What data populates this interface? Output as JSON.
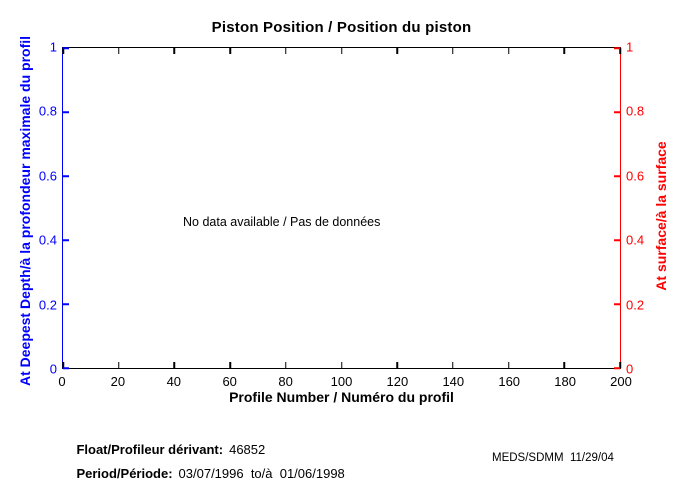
{
  "chart_data": {
    "type": "line",
    "title": "Piston Position / Position du piston",
    "xlabel": "Profile Number / Numéro du profil",
    "ylabel_left": "At Deepest Depth/à la profondeur maximale du profil",
    "ylabel_right": "At surface/à la surface",
    "xlim": [
      0,
      200
    ],
    "ylim_left": [
      0,
      1
    ],
    "ylim_right": [
      0,
      1
    ],
    "x_ticks": [
      "0",
      "20",
      "40",
      "60",
      "80",
      "100",
      "120",
      "140",
      "160",
      "180",
      "200"
    ],
    "y_ticks_left": [
      "0",
      "0.2",
      "0.4",
      "0.6",
      "0.8",
      "1"
    ],
    "y_ticks_right": [
      "0",
      "0.2",
      "0.4",
      "0.6",
      "0.8",
      "1"
    ],
    "grid": false,
    "legend": "none",
    "series": [],
    "no_data_message": "No data available / Pas de données",
    "colors": {
      "left_axis": "#0000ff",
      "right_axis": "#ff0000",
      "frame": "#000000",
      "background": "#ffffff"
    }
  },
  "footer": {
    "float_label": "Float/Profileur dérivant:",
    "float_value": "46852",
    "period_label": "Period/Période:",
    "period_value": "03/07/1996  to/à  01/06/1998",
    "credit": "MEDS/SDMM  11/29/04"
  }
}
